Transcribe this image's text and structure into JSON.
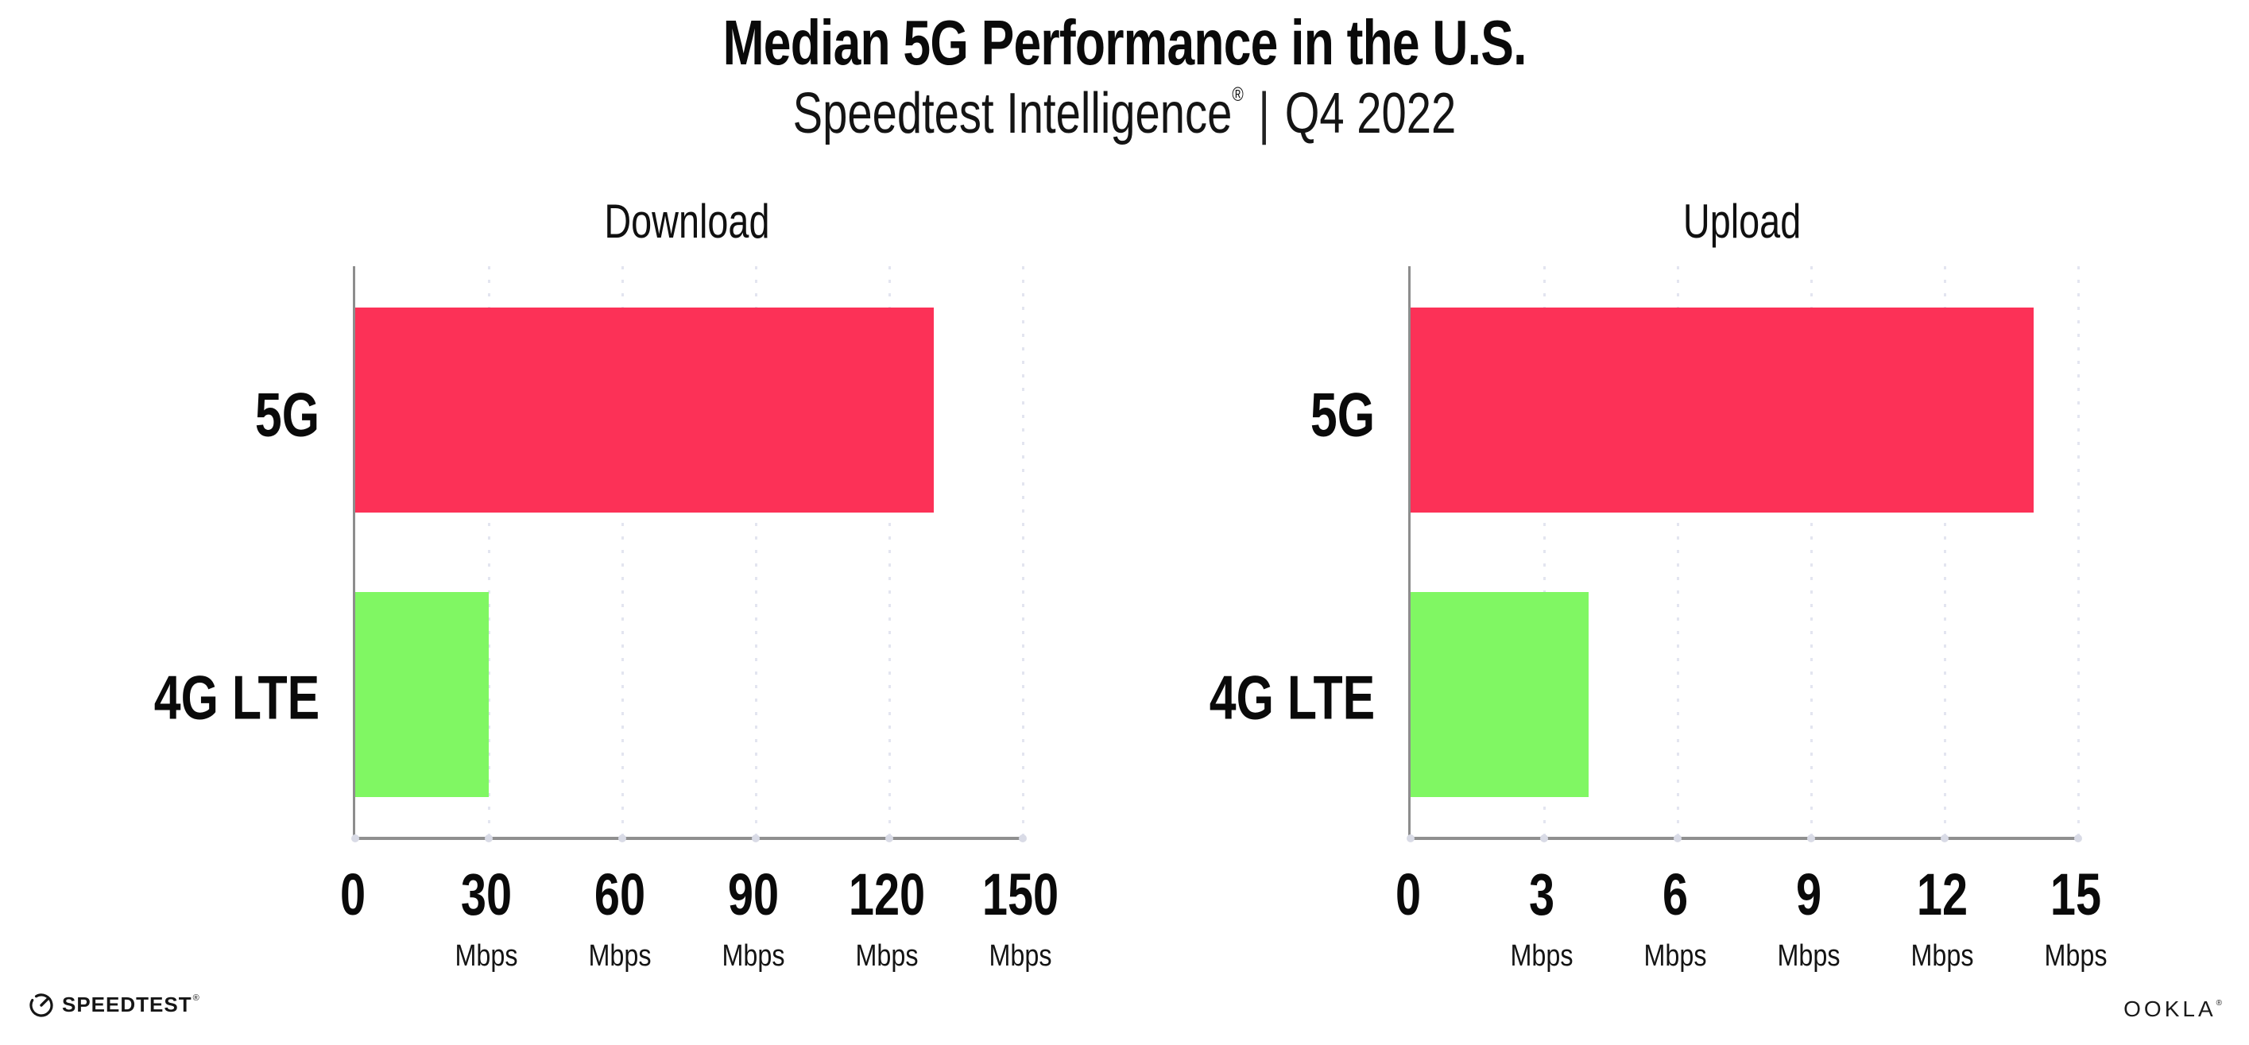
{
  "header": {
    "title": "Median 5G Performance in the U.S.",
    "subtitle": {
      "brand": "Speedtest Intelligence",
      "registered_mark": "®",
      "separator": "|",
      "period": "Q4 2022"
    }
  },
  "chart_data": [
    {
      "type": "bar",
      "orientation": "horizontal",
      "title": "Download",
      "categories": [
        "5G",
        "4G LTE"
      ],
      "values": [
        130,
        30
      ],
      "unit": "Mbps",
      "xlim": [
        0,
        150
      ],
      "x_ticks": [
        0,
        30,
        60,
        90,
        120,
        150
      ],
      "tick_unit_label": "Mbps",
      "grid": "vertical-dotted",
      "legend": "none",
      "bar_colors": [
        "#FC3157",
        "#80F763"
      ]
    },
    {
      "type": "bar",
      "orientation": "horizontal",
      "title": "Upload",
      "categories": [
        "5G",
        "4G LTE"
      ],
      "values": [
        14,
        4
      ],
      "unit": "Mbps",
      "xlim": [
        0,
        15
      ],
      "x_ticks": [
        0,
        3,
        6,
        9,
        12,
        15
      ],
      "tick_unit_label": "Mbps",
      "grid": "vertical-dotted",
      "legend": "none",
      "bar_colors": [
        "#FC3157",
        "#80F763"
      ]
    }
  ],
  "footer": {
    "speedtest_wordmark": "SPEEDTEST",
    "speedtest_mark": "®",
    "ookla_wordmark": "OOKLA",
    "ookla_mark": "®"
  },
  "colors": {
    "bar_5g": "#FC3157",
    "bar_4g_lte": "#80F763",
    "axis": "#8D8D8D",
    "gridline": "#E3E5F0",
    "text": "#0B0B0B",
    "background": "#FFFFFF"
  }
}
